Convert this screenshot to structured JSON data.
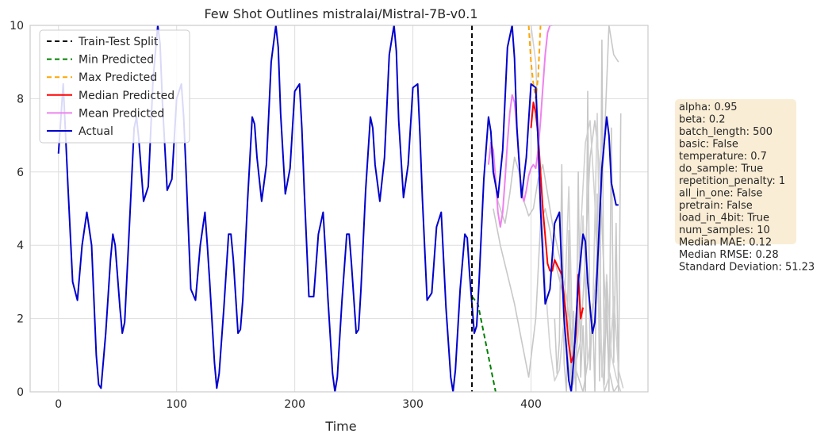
{
  "chart_data": {
    "type": "line",
    "title": "Few Shot Outlines mistralai/Mistral-7B-v0.1",
    "xlabel": "Time",
    "ylabel": "",
    "xlim": [
      -24,
      499
    ],
    "ylim": [
      0,
      10
    ],
    "xticks": [
      0,
      100,
      200,
      300,
      400
    ],
    "yticks": [
      0,
      2,
      4,
      6,
      8,
      10
    ],
    "grid": true,
    "legend_position": "top-left",
    "split_x": 350,
    "legend": [
      {
        "label": "Train-Test Split",
        "color": "#000000",
        "dash": "6,4"
      },
      {
        "label": "Min Predicted",
        "color": "#008000",
        "dash": "6,4"
      },
      {
        "label": "Max Predicted",
        "color": "#ffa500",
        "dash": "6,4"
      },
      {
        "label": "Median Predicted",
        "color": "#ff0000",
        "dash": ""
      },
      {
        "label": "Mean Predicted",
        "color": "#ee82ee",
        "dash": ""
      },
      {
        "label": "Actual",
        "color": "#0000cd",
        "dash": ""
      }
    ],
    "series": [
      {
        "name": "Min Predicted",
        "color": "#008000",
        "dash": "6,4",
        "x": [
          350,
          355,
          360,
          365,
          370
        ],
        "y": [
          2.6,
          2.4,
          1.6,
          0.8,
          0.0
        ]
      },
      {
        "name": "Max Predicted",
        "color": "#ffa500",
        "dash": "6,4",
        "x": [
          398,
          400,
          402,
          404,
          406,
          408
        ],
        "y": [
          10.0,
          9.0,
          8.4,
          8.0,
          8.6,
          10.0
        ]
      },
      {
        "name": "Median Predicted",
        "color": "#ff0000",
        "dash": "",
        "x": [
          400,
          402,
          404,
          406,
          410,
          414,
          416,
          418,
          420,
          426,
          430,
          432,
          434,
          436,
          438,
          440,
          442,
          444
        ],
        "y": [
          7.2,
          7.9,
          7.6,
          7.0,
          5.0,
          3.5,
          3.3,
          3.3,
          3.6,
          3.2,
          2.0,
          1.3,
          0.8,
          1.0,
          1.6,
          3.2,
          2.0,
          2.3
        ]
      },
      {
        "name": "Mean Predicted",
        "color": "#ee82ee",
        "dash": "",
        "x": [
          364,
          366,
          368,
          370,
          372,
          374,
          376,
          378,
          380,
          382,
          384,
          386,
          388,
          390,
          392,
          394,
          396,
          398,
          400,
          402,
          404,
          406,
          408,
          410,
          412,
          414,
          416,
          418
        ],
        "y": [
          6.2,
          6.8,
          6.6,
          5.8,
          4.9,
          4.5,
          4.9,
          5.8,
          6.8,
          7.6,
          8.1,
          7.9,
          7.2,
          6.2,
          5.4,
          5.2,
          5.5,
          5.9,
          6.1,
          6.2,
          6.1,
          6.6,
          7.4,
          8.3,
          9.2,
          9.8,
          10.0,
          10.0
        ]
      },
      {
        "name": "Actual",
        "color": "#0000cd",
        "dash": "",
        "x": [
          0,
          4,
          8,
          12,
          16,
          20,
          24,
          28,
          32,
          34,
          36,
          40,
          44,
          46,
          48,
          52,
          54,
          56,
          60,
          64,
          66,
          68,
          72,
          76,
          80,
          84,
          86,
          88,
          92,
          96,
          100,
          104,
          106,
          108,
          112,
          116,
          120,
          124,
          126,
          128,
          132,
          134,
          136,
          140,
          144,
          146,
          148,
          152,
          154,
          156,
          160,
          164,
          166,
          168,
          172,
          176,
          180,
          184,
          186,
          188,
          192,
          196,
          200,
          204,
          206,
          208,
          212,
          216,
          220,
          224,
          226,
          228,
          232,
          234,
          236,
          240,
          244,
          246,
          248,
          252,
          254,
          256,
          260,
          264,
          266,
          268,
          272,
          276,
          280,
          284,
          286,
          288,
          292,
          296,
          300,
          304,
          306,
          308,
          312,
          316,
          320,
          324,
          326,
          328,
          332,
          334,
          336,
          340,
          344,
          346,
          348,
          352,
          354,
          356,
          360,
          364,
          366,
          368,
          372,
          376,
          380,
          384,
          386,
          388,
          392,
          396,
          400,
          404,
          406,
          408,
          412,
          416,
          420,
          424,
          426,
          428,
          432,
          434,
          436,
          440,
          444,
          446,
          448,
          452,
          454,
          456,
          460,
          464,
          466,
          468,
          472,
          474
        ],
        "y": [
          6.5,
          8.4,
          5.6,
          3.0,
          2.5,
          4.0,
          4.9,
          4.0,
          1.0,
          0.2,
          0.1,
          1.6,
          3.6,
          4.3,
          4.0,
          2.3,
          1.6,
          1.9,
          4.5,
          7.2,
          7.5,
          6.9,
          5.2,
          5.6,
          8.5,
          10.0,
          9.5,
          7.9,
          5.5,
          5.8,
          8.0,
          8.4,
          7.5,
          6.0,
          2.8,
          2.5,
          4.0,
          4.9,
          4.0,
          3.0,
          0.8,
          0.1,
          0.5,
          2.3,
          4.3,
          4.3,
          3.6,
          1.6,
          1.7,
          2.5,
          5.2,
          7.5,
          7.3,
          6.4,
          5.2,
          6.2,
          9.0,
          10.0,
          9.4,
          7.6,
          5.4,
          6.1,
          8.2,
          8.4,
          7.2,
          5.5,
          2.6,
          2.6,
          4.3,
          4.9,
          3.8,
          2.6,
          0.5,
          0.0,
          0.4,
          2.5,
          4.3,
          4.3,
          3.5,
          1.6,
          1.7,
          2.8,
          5.5,
          7.5,
          7.2,
          6.2,
          5.2,
          6.4,
          9.2,
          10.0,
          9.3,
          7.4,
          5.3,
          6.2,
          8.3,
          8.4,
          7.0,
          5.3,
          2.5,
          2.7,
          4.5,
          4.9,
          3.6,
          2.3,
          0.4,
          0.0,
          0.6,
          2.8,
          4.3,
          4.2,
          3.2,
          1.6,
          1.8,
          3.0,
          5.8,
          7.5,
          7.1,
          6.0,
          5.3,
          6.6,
          9.4,
          10.0,
          9.1,
          7.2,
          5.3,
          6.4,
          8.4,
          8.3,
          6.8,
          5.0,
          2.4,
          2.8,
          4.6,
          4.9,
          3.4,
          2.0,
          0.3,
          0.0,
          0.8,
          3.0,
          4.3,
          4.1,
          3.0,
          1.6,
          1.9,
          3.3,
          6.1,
          7.5,
          7.0,
          5.7,
          5.1,
          5.1
        ]
      }
    ],
    "sample_paths": [
      {
        "color": "#c8c8c8",
        "x": [
          366,
          372,
          378,
          382,
          386,
          390,
          394,
          398,
          402,
          406,
          410,
          414,
          418,
          422,
          426,
          430,
          434,
          438,
          442,
          446,
          450,
          454,
          458,
          462,
          466,
          470,
          474
        ],
        "y": [
          6.6,
          5.2,
          4.6,
          5.4,
          6.4,
          6.0,
          5.2,
          4.8,
          5.0,
          5.8,
          6.2,
          5.4,
          4.6,
          4.0,
          3.4,
          2.6,
          1.6,
          0.8,
          1.4,
          3.8,
          6.4,
          7.4,
          6.2,
          3.0,
          0.6,
          0.0,
          0.2
        ]
      },
      {
        "color": "#c8c8c8",
        "x": [
          368,
          374,
          380,
          386,
          392,
          398,
          404,
          408,
          412,
          416,
          420,
          426,
          432,
          438,
          444,
          450,
          456,
          462,
          466,
          470,
          474
        ],
        "y": [
          5.0,
          4.0,
          3.2,
          2.4,
          1.4,
          0.4,
          2.0,
          4.6,
          5.0,
          4.4,
          3.6,
          2.8,
          1.8,
          0.6,
          0.0,
          1.2,
          3.6,
          6.8,
          10.0,
          9.2,
          9.0
        ]
      },
      {
        "color": "#d2d2d2",
        "x": [
          400,
          404,
          408,
          412,
          416,
          420,
          424,
          428,
          432,
          436,
          440,
          444,
          448,
          452,
          456,
          460,
          464,
          468,
          472,
          476
        ],
        "y": [
          10.0,
          9.0,
          5.6,
          3.0,
          1.2,
          0.3,
          0.6,
          2.0,
          5.6,
          0.2,
          1.6,
          4.8,
          0.8,
          1.8,
          7.6,
          0.4,
          3.2,
          1.0,
          0.4,
          0.0
        ]
      },
      {
        "color": "#c8c8c8",
        "x": [
          420,
          422,
          424,
          426,
          428,
          430,
          432,
          434,
          436,
          438,
          440,
          442,
          444,
          446,
          448,
          450,
          452,
          454,
          456,
          458,
          460,
          462,
          464,
          466,
          468,
          470,
          472,
          474,
          476
        ],
        "y": [
          2.0,
          0.5,
          1.4,
          6.2,
          0.8,
          0.0,
          4.4,
          0.3,
          2.2,
          0.0,
          6.0,
          0.4,
          1.8,
          0.0,
          8.2,
          0.6,
          2.4,
          0.0,
          5.4,
          0.3,
          9.6,
          0.2,
          3.0,
          0.0,
          7.2,
          0.8,
          4.6,
          0.0,
          7.6
        ]
      },
      {
        "color": "#d0d0d0",
        "x": [
          430,
          434,
          438,
          442,
          446,
          450,
          454,
          458,
          462,
          466,
          470,
          474,
          478
        ],
        "y": [
          1.4,
          0.2,
          0.5,
          4.4,
          6.8,
          7.4,
          5.2,
          1.6,
          0.0,
          0.4,
          2.6,
          0.6,
          0.1
        ]
      }
    ]
  },
  "info_box": {
    "lines": [
      "alpha: 0.95",
      "beta: 0.2",
      "batch_length: 500",
      "basic: False",
      "temperature: 0.7",
      "do_sample: True",
      "repetition_penalty: 1",
      "all_in_one: False",
      "pretrain: False",
      "load_in_4bit: True",
      "num_samples: 10"
    ],
    "metrics": [
      "Median MAE: 0.12",
      "Median RMSE: 0.28",
      "Standard Deviation: 51.23"
    ],
    "box_color": "#f5deb3"
  }
}
